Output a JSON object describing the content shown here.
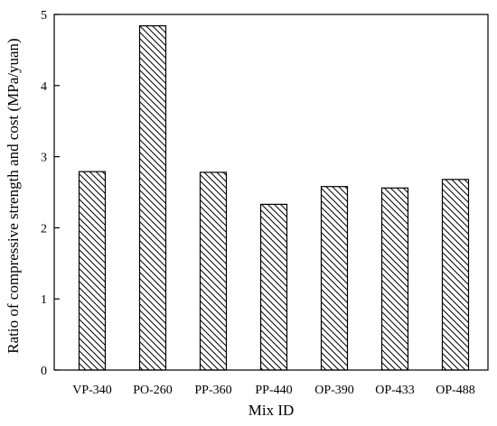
{
  "chart_data": {
    "type": "bar",
    "categories": [
      "VP-340",
      "PO-260",
      "PP-360",
      "PP-440",
      "OP-390",
      "OP-433",
      "OP-488"
    ],
    "values": [
      2.79,
      4.84,
      2.78,
      2.33,
      2.58,
      2.56,
      2.68
    ],
    "xlabel": "Mix ID",
    "ylabel": "Ratio of compressive strength and cost (MPa/yuan)",
    "ylim": [
      0,
      5
    ],
    "yticks": [
      0,
      1,
      2,
      3,
      4,
      5
    ],
    "grid": false,
    "bar_fill": "diagonal-hatch",
    "colors": {
      "bar_stroke": "#000000",
      "hatch": "#000000",
      "axis": "#000000",
      "background": "#ffffff"
    }
  }
}
